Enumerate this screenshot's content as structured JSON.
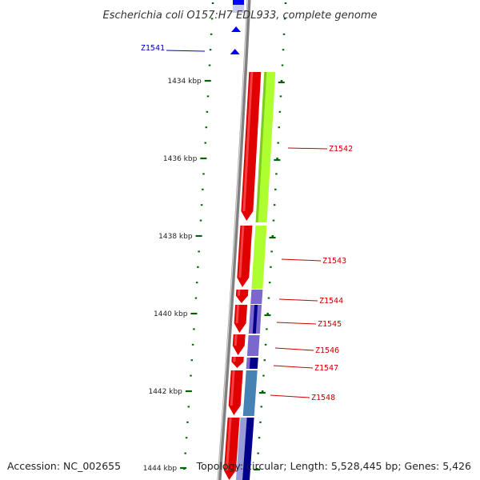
{
  "title": "Escherichia coli O157:H7 EDL933, complete genome",
  "accession_text": "Accession: NC_002655",
  "topology_text": "Topology: circular; Length: 5,528,445 bp; Genes: 5,426",
  "colors": {
    "backbone": "#808080",
    "cds_forward": "#e00000",
    "cog_lime": "#adff2f",
    "cog_purple": "#7b68cc",
    "cog_navy": "#00008b",
    "cog_steel": "#4682b4",
    "reverse_marker": "#0000ff",
    "ticks": "#006400",
    "label_forward": "#cc0000",
    "label_reverse": "#0000cc"
  },
  "ruler": {
    "major_labels": [
      "1434 kbp",
      "1436 kbp",
      "1438 kbp",
      "1440 kbp",
      "1442 kbp",
      "1444 kbp"
    ]
  },
  "genes": [
    {
      "name": "Z1541",
      "strand": "reverse"
    },
    {
      "name": "Z1542",
      "strand": "forward"
    },
    {
      "name": "Z1543",
      "strand": "forward"
    },
    {
      "name": "Z1544",
      "strand": "forward"
    },
    {
      "name": "Z1545",
      "strand": "forward"
    },
    {
      "name": "Z1546",
      "strand": "forward"
    },
    {
      "name": "Z1547",
      "strand": "forward"
    },
    {
      "name": "Z1548",
      "strand": "forward"
    }
  ]
}
